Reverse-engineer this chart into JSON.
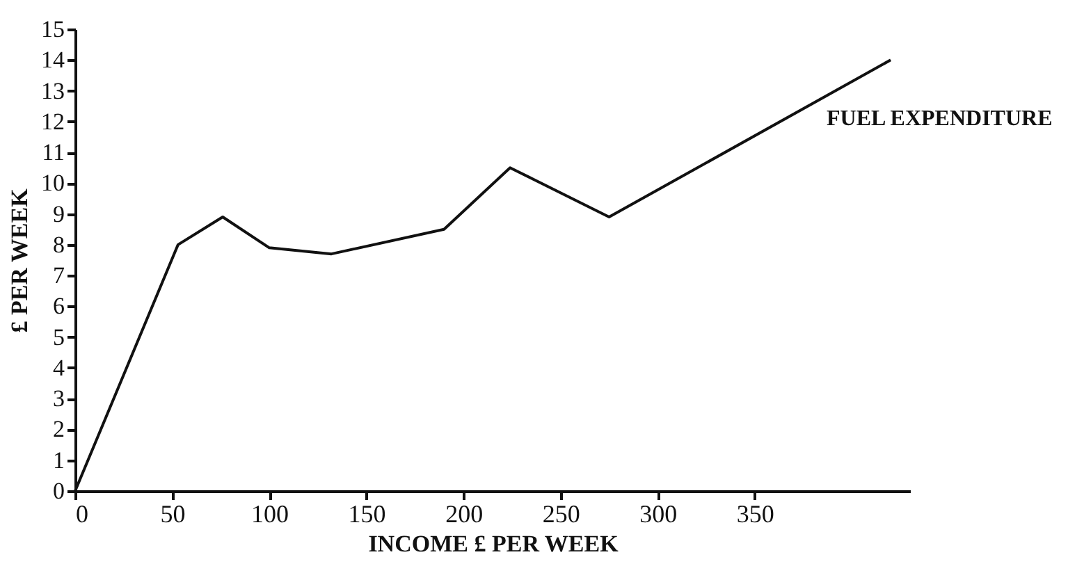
{
  "chart_data": {
    "type": "line",
    "xlabel": "INCOME £ PER WEEK",
    "ylabel": "£ PER WEEK",
    "x": [
      0,
      53,
      76,
      100,
      132,
      190,
      224,
      275,
      420
    ],
    "series": [
      {
        "color": "#111111",
        "values": [
          0,
          8.0,
          8.9,
          7.9,
          7.7,
          8.5,
          10.5,
          8.9,
          14.0
        ]
      }
    ],
    "annotations": [
      "FUEL EXPENDITURE"
    ],
    "xlim": [
      0,
      430
    ],
    "xticks": [
      0,
      50,
      100,
      150,
      200,
      250,
      300,
      350
    ],
    "ylim": [
      0,
      15
    ],
    "yticks": [
      0,
      1,
      2,
      3,
      4,
      5,
      6,
      7,
      8,
      9,
      10,
      11,
      12,
      13,
      14,
      15
    ],
    "grid": false,
    "marker": "none",
    "line_style": "solid"
  }
}
